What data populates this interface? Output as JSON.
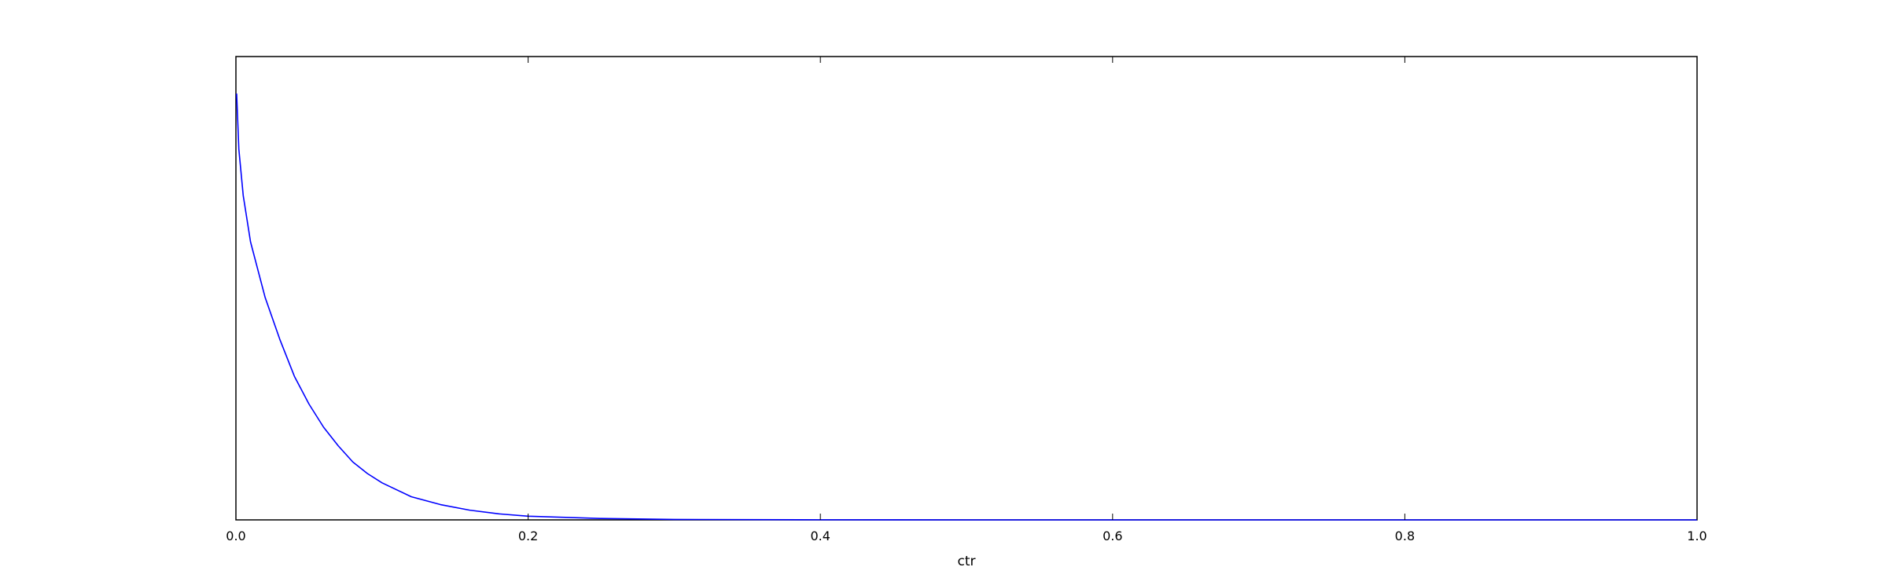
{
  "chart_data": {
    "type": "line",
    "title": "",
    "xlabel": "ctr",
    "ylabel": "",
    "xlim": [
      0.0,
      1.0
    ],
    "ylim": [
      0.0,
      1.0
    ],
    "x_ticks": [
      "0.0",
      "0.2",
      "0.4",
      "0.6",
      "0.8",
      "1.0"
    ],
    "y_ticks": [],
    "grid": false,
    "legend": "none",
    "series": [
      {
        "color": "#0000ff",
        "x": [
          0.0005,
          0.002,
          0.005,
          0.01,
          0.015,
          0.02,
          0.03,
          0.04,
          0.05,
          0.06,
          0.07,
          0.08,
          0.09,
          0.1,
          0.12,
          0.14,
          0.16,
          0.18,
          0.2,
          0.25,
          0.3,
          0.4,
          0.5,
          0.6,
          0.7,
          0.8,
          0.9,
          1.0
        ],
        "y": [
          0.92,
          0.8,
          0.7,
          0.6,
          0.54,
          0.48,
          0.39,
          0.31,
          0.25,
          0.2,
          0.16,
          0.125,
          0.1,
          0.08,
          0.05,
          0.033,
          0.021,
          0.013,
          0.008,
          0.003,
          0.001,
          0.0002,
          0.0,
          0.0,
          0.0,
          0.0,
          0.0,
          0.0
        ]
      }
    ]
  }
}
